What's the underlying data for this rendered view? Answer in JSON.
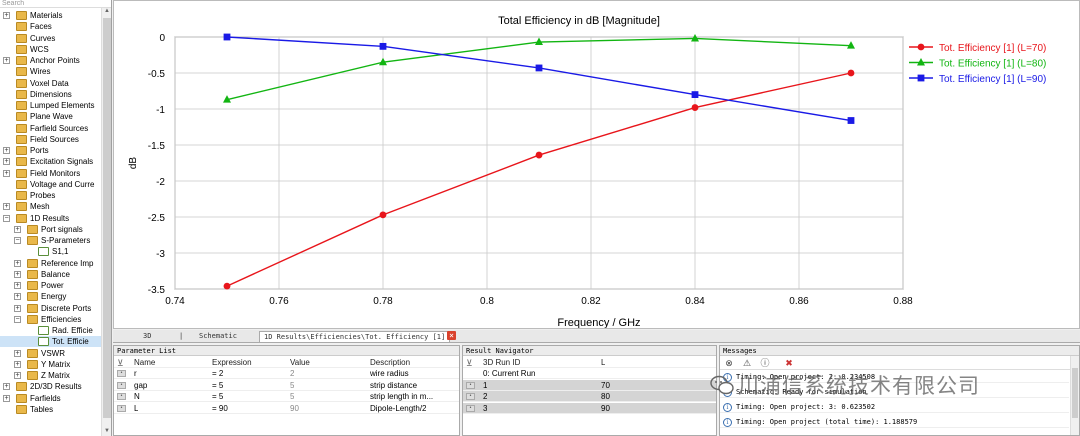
{
  "tree": {
    "search_placeholder": "Search",
    "items": [
      {
        "label": "Materials",
        "level": 0,
        "expander": "+",
        "icon": "folder-icon"
      },
      {
        "label": "Faces",
        "level": 0,
        "expander": "",
        "icon": "folder-icon"
      },
      {
        "label": "Curves",
        "level": 0,
        "expander": "",
        "icon": "folder-icon"
      },
      {
        "label": "WCS",
        "level": 0,
        "expander": "",
        "icon": "folder-icon"
      },
      {
        "label": "Anchor Points",
        "level": 0,
        "expander": "+",
        "icon": "folder-icon"
      },
      {
        "label": "Wires",
        "level": 0,
        "expander": "",
        "icon": "folder-icon"
      },
      {
        "label": "Voxel Data",
        "level": 0,
        "expander": "",
        "icon": "folder-icon"
      },
      {
        "label": "Dimensions",
        "level": 0,
        "expander": "",
        "icon": "folder-icon"
      },
      {
        "label": "Lumped Elements",
        "level": 0,
        "expander": "",
        "icon": "folder-icon"
      },
      {
        "label": "Plane Wave",
        "level": 0,
        "expander": "",
        "icon": "folder-icon"
      },
      {
        "label": "Farfield Sources",
        "level": 0,
        "expander": "",
        "icon": "folder-icon"
      },
      {
        "label": "Field Sources",
        "level": 0,
        "expander": "",
        "icon": "folder-icon"
      },
      {
        "label": "Ports",
        "level": 0,
        "expander": "+",
        "icon": "folder-icon"
      },
      {
        "label": "Excitation Signals",
        "level": 0,
        "expander": "+",
        "icon": "folder-icon"
      },
      {
        "label": "Field Monitors",
        "level": 0,
        "expander": "+",
        "icon": "folder-icon"
      },
      {
        "label": "Voltage and Curre",
        "level": 0,
        "expander": "",
        "icon": "folder-icon"
      },
      {
        "label": "Probes",
        "level": 0,
        "expander": "",
        "icon": "folder-icon"
      },
      {
        "label": "Mesh",
        "level": 0,
        "expander": "+",
        "icon": "folder-icon"
      },
      {
        "label": "1D Results",
        "level": 0,
        "expander": "−",
        "icon": "folder-icon"
      },
      {
        "label": "Port signals",
        "level": 1,
        "expander": "+",
        "icon": "folder-icon"
      },
      {
        "label": "S-Parameters",
        "level": 1,
        "expander": "−",
        "icon": "folder-icon"
      },
      {
        "label": "S1,1",
        "level": 2,
        "expander": "",
        "icon": "result-icon"
      },
      {
        "label": "Reference Imp",
        "level": 1,
        "expander": "+",
        "icon": "folder-icon"
      },
      {
        "label": "Balance",
        "level": 1,
        "expander": "+",
        "icon": "folder-icon"
      },
      {
        "label": "Power",
        "level": 1,
        "expander": "+",
        "icon": "folder-icon"
      },
      {
        "label": "Energy",
        "level": 1,
        "expander": "+",
        "icon": "folder-icon"
      },
      {
        "label": "Discrete Ports",
        "level": 1,
        "expander": "+",
        "icon": "folder-icon"
      },
      {
        "label": "Efficiencies",
        "level": 1,
        "expander": "−",
        "icon": "folder-icon"
      },
      {
        "label": "Rad. Efficie",
        "level": 2,
        "expander": "",
        "icon": "result-icon"
      },
      {
        "label": "Tot. Efficie",
        "level": 2,
        "expander": "",
        "icon": "result-icon",
        "selected": true
      },
      {
        "label": "VSWR",
        "level": 1,
        "expander": "+",
        "icon": "folder-icon"
      },
      {
        "label": "Y Matrix",
        "level": 1,
        "expander": "+",
        "icon": "folder-icon"
      },
      {
        "label": "Z Matrix",
        "level": 1,
        "expander": "+",
        "icon": "folder-icon"
      },
      {
        "label": "2D/3D Results",
        "level": 0,
        "expander": "+",
        "icon": "folder-icon"
      },
      {
        "label": "Farfields",
        "level": 0,
        "expander": "+",
        "icon": "folder-icon"
      },
      {
        "label": "Tables",
        "level": 0,
        "expander": "",
        "icon": "folder-icon"
      }
    ]
  },
  "chart_data": {
    "type": "line",
    "title": "Total Efficiency in dB [Magnitude]",
    "xlabel": "Frequency / GHz",
    "ylabel": "dB",
    "xlim": [
      0.74,
      0.88
    ],
    "ylim": [
      -3.5,
      0
    ],
    "xticks": [
      "0.74",
      "0.76",
      "0.78",
      "0.8",
      "0.82",
      "0.84",
      "0.86",
      "0.88"
    ],
    "yticks": [
      "0",
      "-0.5",
      "-1",
      "-1.5",
      "-2",
      "-2.5",
      "-3",
      "-3.5"
    ],
    "grid": true,
    "legend_position": "top-right",
    "series": [
      {
        "name": "Tot. Efficiency [1] (L=70)",
        "color": "#e8151b",
        "marker": "circle",
        "x": [
          0.75,
          0.78,
          0.81,
          0.84,
          0.87
        ],
        "y": [
          -3.46,
          -2.47,
          -1.64,
          -0.98,
          -0.5
        ]
      },
      {
        "name": "Tot. Efficiency [1] (L=80)",
        "color": "#12b512",
        "marker": "triangle",
        "x": [
          0.75,
          0.78,
          0.81,
          0.84,
          0.87
        ],
        "y": [
          -0.87,
          -0.35,
          -0.07,
          -0.02,
          -0.12
        ]
      },
      {
        "name": "Tot. Efficiency [1] (L=90)",
        "color": "#1a1ae6",
        "marker": "square",
        "x": [
          0.75,
          0.78,
          0.81,
          0.84,
          0.87
        ],
        "y": [
          0.0,
          -0.13,
          -0.43,
          -0.8,
          -1.16
        ]
      }
    ]
  },
  "tabs": {
    "t3d": "3D",
    "sep": "|",
    "schematic": "Schematic",
    "active": "1D Results\\Efficiencies\\Tot. Efficiency [1]",
    "close": "×"
  },
  "param_list": {
    "title": "Parameter List",
    "headers": [
      "Name",
      "Expression",
      "Value",
      "Description"
    ],
    "rows": [
      {
        "name": "r",
        "expression": "= 2",
        "value": "2",
        "description": "wire radius"
      },
      {
        "name": "gap",
        "expression": "= 5",
        "value": "5",
        "description": "strip distance"
      },
      {
        "name": "N",
        "expression": "= 5",
        "value": "5",
        "description": "strip length in m..."
      },
      {
        "name": "L",
        "expression": "= 90",
        "value": "90",
        "description": "Dipole-Length/2"
      }
    ]
  },
  "result_nav": {
    "title": "Result Navigator",
    "headers": [
      "3D Run ID",
      "L"
    ],
    "rows": [
      {
        "id": "0: Current Run",
        "l": ""
      },
      {
        "id": "1",
        "l": "70"
      },
      {
        "id": "2",
        "l": "80"
      },
      {
        "id": "3",
        "l": "90"
      }
    ]
  },
  "messages": {
    "title": "Messages",
    "rows": [
      "Timing: Open project: 2: 0.234508",
      "Schematic: Ready for simulation",
      "Timing: Open project: 3: 0.623502",
      "Timing: Open project (total time): 1.188579"
    ]
  },
  "watermark": "川浦信系统技术有限公司"
}
